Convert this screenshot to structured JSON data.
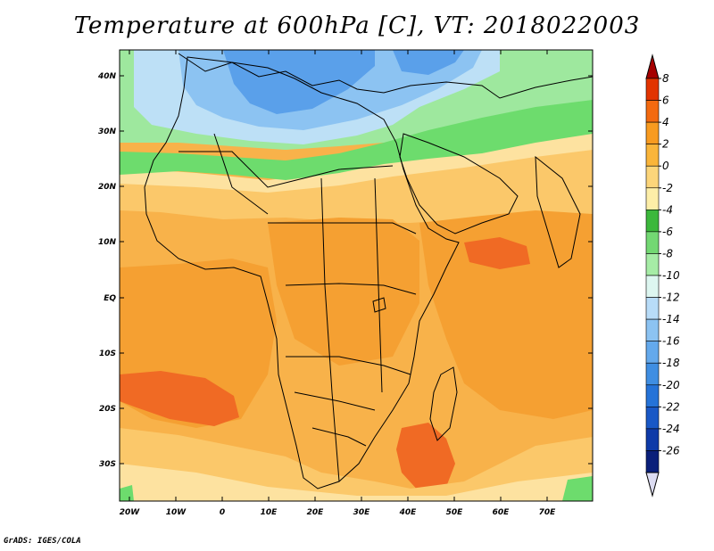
{
  "title": "Temperature at 600hPa [C], VT: 2018022003",
  "credit": "GrADS: IGES/COLA",
  "map": {
    "lat_labels": [
      "40N",
      "30N",
      "20N",
      "10N",
      "EQ",
      "10S",
      "20S",
      "30S"
    ],
    "lon_labels": [
      "20W",
      "10W",
      "0",
      "10E",
      "20E",
      "30E",
      "40E",
      "50E",
      "60E",
      "70E"
    ]
  },
  "colorbar": {
    "labels": [
      "8",
      "6",
      "4",
      "2",
      "0",
      "-2",
      "-4",
      "-6",
      "-8",
      "-10",
      "-12",
      "-14",
      "-16",
      "-18",
      "-20",
      "-22",
      "-24",
      "-26"
    ],
    "colors": [
      "#a50000",
      "#e23400",
      "#f36a10",
      "#f89b20",
      "#fab53a",
      "#fcd57a",
      "#fdeea8",
      "#3cb83c",
      "#73d873",
      "#a6eca6",
      "#ddf6f0",
      "#b8dcf8",
      "#8cc3f2",
      "#64a9ec",
      "#3f8ee2",
      "#2573d8",
      "#1958c6",
      "#0e3aa8",
      "#0a1f7a",
      "#dcdcf2"
    ]
  },
  "colors": {
    "strong_orange": "#f5a032",
    "mid_orange": "#f8b24a",
    "light_orange": "#fbc86a",
    "pale_yellow": "#fde2a0",
    "green": "#6ddc6d",
    "light_green": "#9ee89e",
    "pale_blue": "#bde0f6",
    "mid_blue": "#8cc3f2",
    "deep_blue": "#5aa0ea",
    "red_orange": "#f06a24"
  }
}
